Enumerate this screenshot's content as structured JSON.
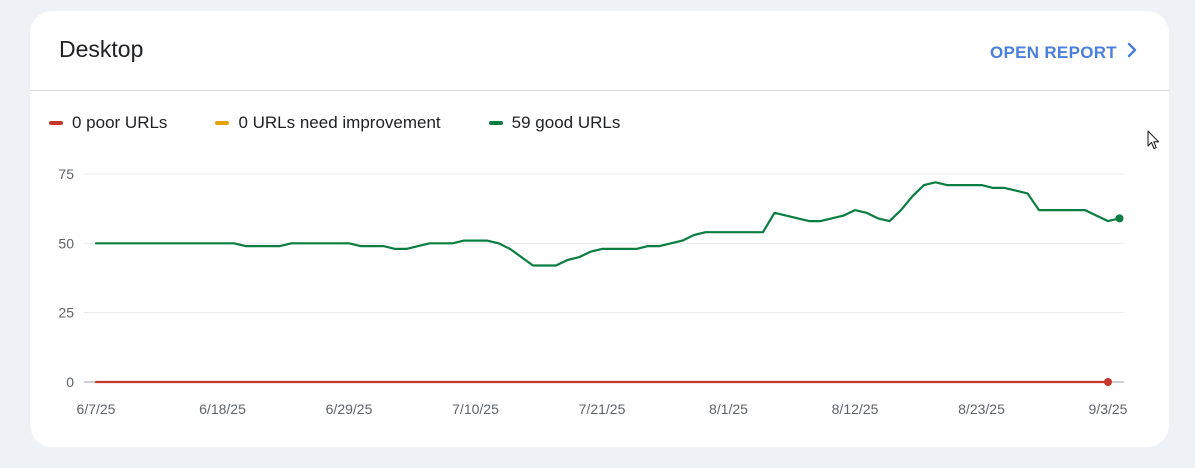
{
  "card": {
    "title": "Desktop",
    "open_report_label": "OPEN REPORT"
  },
  "legend": [
    {
      "label": "0 poor URLs",
      "color": "#c5372b"
    },
    {
      "label": "0 URLs need improvement",
      "color": "#e8a200"
    },
    {
      "label": "59 good URLs",
      "color": "#0a7d40"
    }
  ],
  "icons": {
    "open_report": "chevron-right-icon",
    "cursor": "mouse-pointer-icon"
  },
  "chart_data": {
    "type": "line",
    "xlim": [
      "2025-06-07",
      "2025-09-03"
    ],
    "ylim": [
      0,
      75
    ],
    "y_ticks": [
      0,
      25,
      50,
      75
    ],
    "y_tick_labels": [
      "0",
      "25",
      "50",
      "75"
    ],
    "x_ticks": [
      "2025-06-07",
      "2025-06-18",
      "2025-06-29",
      "2025-07-10",
      "2025-07-21",
      "2025-08-01",
      "2025-08-12",
      "2025-08-23",
      "2025-09-03"
    ],
    "x_tick_labels": [
      "6/7/25",
      "6/18/25",
      "6/29/25",
      "7/10/25",
      "7/21/25",
      "8/1/25",
      "8/12/25",
      "8/23/25",
      "9/3/25"
    ],
    "grid": true,
    "series": [
      {
        "name": "0 poor URLs",
        "color": "#c5372b",
        "points": [
          [
            "2025-06-07",
            0
          ],
          [
            "2025-09-03",
            0
          ]
        ],
        "end_marker": true
      },
      {
        "name": "59 good URLs",
        "color": "#0a7d40",
        "points": [
          [
            "2025-06-07",
            50
          ],
          [
            "2025-06-19",
            50
          ],
          [
            "2025-06-20",
            49
          ],
          [
            "2025-06-23",
            49
          ],
          [
            "2025-06-24",
            50
          ],
          [
            "2025-06-29",
            50
          ],
          [
            "2025-06-30",
            49
          ],
          [
            "2025-07-02",
            49
          ],
          [
            "2025-07-03",
            48
          ],
          [
            "2025-07-04",
            48
          ],
          [
            "2025-07-06",
            50
          ],
          [
            "2025-07-08",
            50
          ],
          [
            "2025-07-09",
            51
          ],
          [
            "2025-07-11",
            51
          ],
          [
            "2025-07-12",
            50
          ],
          [
            "2025-07-13",
            48
          ],
          [
            "2025-07-15",
            42
          ],
          [
            "2025-07-17",
            42
          ],
          [
            "2025-07-18",
            44
          ],
          [
            "2025-07-19",
            45
          ],
          [
            "2025-07-20",
            47
          ],
          [
            "2025-07-21",
            48
          ],
          [
            "2025-07-24",
            48
          ],
          [
            "2025-07-25",
            49
          ],
          [
            "2025-07-26",
            49
          ],
          [
            "2025-07-28",
            51
          ],
          [
            "2025-07-29",
            53
          ],
          [
            "2025-07-30",
            54
          ],
          [
            "2025-08-04",
            54
          ],
          [
            "2025-08-05",
            61
          ],
          [
            "2025-08-08",
            58
          ],
          [
            "2025-08-09",
            58
          ],
          [
            "2025-08-11",
            60
          ],
          [
            "2025-08-12",
            62
          ],
          [
            "2025-08-13",
            61
          ],
          [
            "2025-08-14",
            59
          ],
          [
            "2025-08-15",
            58
          ],
          [
            "2025-08-16",
            62
          ],
          [
            "2025-08-17",
            67
          ],
          [
            "2025-08-18",
            71
          ],
          [
            "2025-08-19",
            72
          ],
          [
            "2025-08-20",
            71
          ],
          [
            "2025-08-23",
            71
          ],
          [
            "2025-08-24",
            70
          ],
          [
            "2025-08-25",
            70
          ],
          [
            "2025-08-27",
            68
          ],
          [
            "2025-08-28",
            62
          ],
          [
            "2025-09-01",
            62
          ],
          [
            "2025-09-03",
            58
          ],
          [
            "2025-09-04",
            59
          ]
        ],
        "end_marker": true
      }
    ]
  }
}
